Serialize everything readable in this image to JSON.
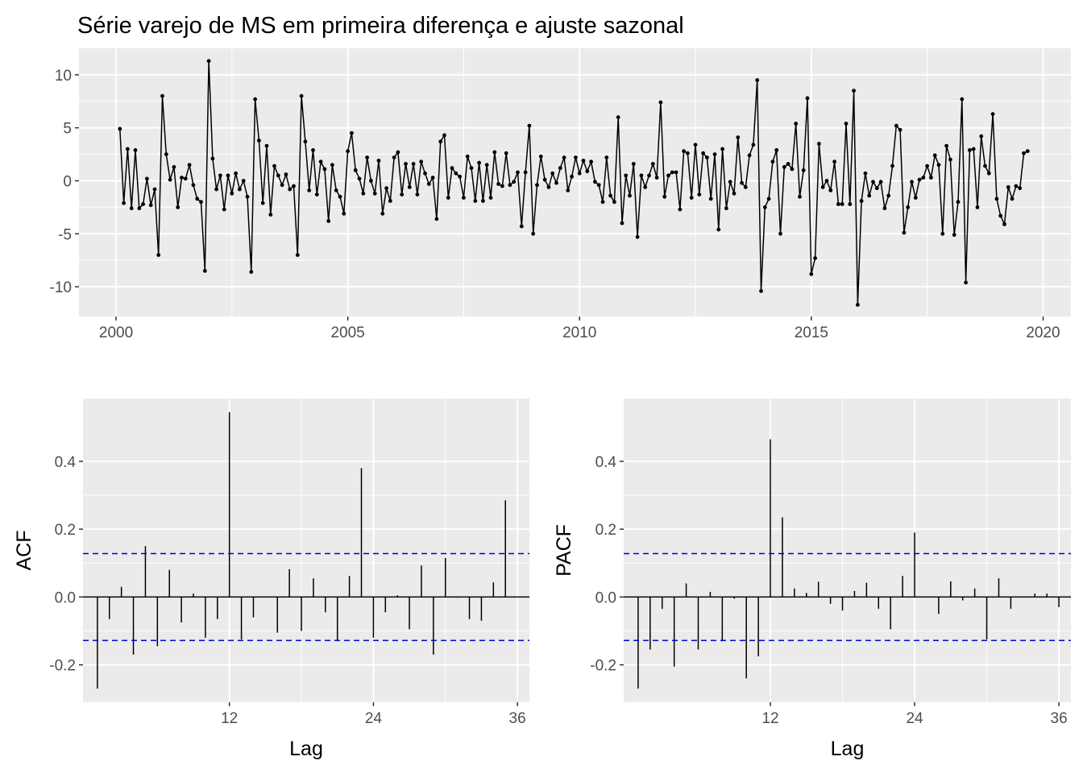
{
  "title": "Série varejo de MS em primeira diferença e ajuste sazonal",
  "colors": {
    "panel_bg": "#ebebeb",
    "grid": "#ffffff",
    "line": "#000000",
    "ci": "#0000cc",
    "tick_text": "#4d4d4d"
  },
  "chart_data": [
    {
      "id": "series",
      "type": "line",
      "title": "Série varejo de MS em primeira diferença e ajuste sazonal",
      "xlabel": "",
      "ylabel": "",
      "x_start": 2000.0833,
      "x_step": 0.08333,
      "xlim": [
        1999.2,
        2020.6
      ],
      "ylim": [
        -12.8,
        12.5
      ],
      "xticks": [
        2000,
        2005,
        2010,
        2015,
        2020
      ],
      "xtick_labels": [
        "2000",
        "2005",
        "2010",
        "2015",
        "2020"
      ],
      "yticks": [
        -10,
        -5,
        0,
        5,
        10
      ],
      "ytick_labels": [
        "-10",
        "-5",
        "0",
        "5",
        "10"
      ],
      "grid": true,
      "points_shown": true,
      "values": [
        4.9,
        -2.1,
        3.0,
        -2.6,
        2.9,
        -2.6,
        -2.2,
        0.2,
        -2.3,
        -0.8,
        -7.0,
        8.0,
        2.5,
        0.1,
        1.3,
        -2.5,
        0.3,
        0.2,
        1.5,
        -0.4,
        -1.7,
        -2.0,
        -8.5,
        11.3,
        2.1,
        -0.8,
        0.5,
        -2.7,
        0.5,
        -1.2,
        0.7,
        -0.8,
        0.0,
        -1.5,
        -8.6,
        7.7,
        3.8,
        -2.1,
        3.3,
        -3.2,
        1.4,
        0.5,
        -0.4,
        0.6,
        -0.8,
        -0.5,
        -7.0,
        8.0,
        3.7,
        -0.9,
        2.9,
        -1.3,
        1.8,
        1.1,
        -3.8,
        1.5,
        -0.9,
        -1.5,
        -3.1,
        2.8,
        4.5,
        1.0,
        0.2,
        -1.2,
        2.2,
        0.0,
        -1.2,
        1.9,
        -3.1,
        -0.7,
        -1.9,
        2.2,
        2.7,
        -1.3,
        1.6,
        -0.6,
        1.6,
        -1.3,
        1.8,
        0.7,
        -0.3,
        0.3,
        -3.6,
        3.7,
        4.3,
        -1.6,
        1.2,
        0.7,
        0.4,
        -1.6,
        2.3,
        1.2,
        -1.9,
        1.7,
        -1.9,
        1.5,
        -1.6,
        2.7,
        -0.3,
        -0.5,
        2.6,
        -0.4,
        -0.1,
        0.8,
        -4.3,
        0.8,
        5.2,
        -5.0,
        -0.4,
        2.3,
        0.1,
        -0.6,
        0.7,
        -0.2,
        1.2,
        2.2,
        -0.9,
        0.4,
        2.2,
        0.7,
        1.9,
        0.9,
        1.8,
        -0.1,
        -0.4,
        -2.0,
        2.2,
        -1.4,
        -2.0,
        6.0,
        -4.0,
        0.5,
        -1.4,
        1.6,
        -5.3,
        0.5,
        -0.6,
        0.5,
        1.6,
        0.3,
        7.4,
        -1.5,
        0.5,
        0.8,
        0.8,
        -2.7,
        2.8,
        2.6,
        -1.6,
        3.4,
        -1.3,
        2.6,
        2.2,
        -1.7,
        2.5,
        -4.6,
        3.0,
        -2.6,
        -0.1,
        -1.2,
        4.1,
        -0.2,
        -0.6,
        2.4,
        3.4,
        9.5,
        -10.4,
        -2.5,
        -1.7,
        1.8,
        2.9,
        -5.0,
        1.3,
        1.6,
        1.1,
        5.4,
        -1.5,
        1.0,
        7.8,
        -8.8,
        -7.3,
        3.5,
        -0.6,
        0.0,
        -0.9,
        1.8,
        -2.2,
        -2.2,
        5.4,
        -2.2,
        8.5,
        -11.7,
        -1.9,
        0.7,
        -1.4,
        -0.1,
        -0.7,
        -0.1,
        -2.6,
        -1.4,
        1.4,
        5.2,
        4.8,
        -4.9,
        -2.5,
        -0.1,
        -1.6,
        0.1,
        0.3,
        1.4,
        0.3,
        2.4,
        1.5,
        -5.0,
        3.3,
        2.0,
        -5.1,
        -2.0,
        7.7,
        -9.6,
        2.9,
        3.0,
        -2.5,
        4.2,
        1.4,
        0.7,
        6.3,
        -1.7,
        -3.3,
        -4.1,
        -0.6,
        -1.7,
        -0.5,
        -0.7,
        2.6,
        2.8
      ]
    },
    {
      "id": "acf",
      "type": "bar",
      "title": "",
      "xlabel": "Lag",
      "ylabel": "ACF",
      "lags": [
        1,
        2,
        3,
        4,
        5,
        6,
        7,
        8,
        9,
        10,
        11,
        12,
        13,
        14,
        15,
        16,
        17,
        18,
        19,
        20,
        21,
        22,
        23,
        24,
        25,
        26,
        27,
        28,
        29,
        30,
        31,
        32,
        33,
        34,
        35,
        36
      ],
      "values": [
        -0.27,
        -0.065,
        0.03,
        -0.17,
        0.15,
        -0.145,
        0.08,
        -0.075,
        0.01,
        -0.12,
        -0.065,
        0.545,
        -0.125,
        -0.06,
        0.0,
        -0.105,
        0.082,
        -0.1,
        0.055,
        -0.045,
        -0.13,
        0.062,
        0.38,
        -0.12,
        -0.045,
        0.005,
        -0.095,
        0.093,
        -0.17,
        0.115,
        -0.002,
        -0.065,
        -0.07,
        0.043,
        0.285,
        0.0
      ],
      "ci": 0.128,
      "xlim": [
        -0.2,
        37.0
      ],
      "ylim": [
        -0.31,
        0.585
      ],
      "xticks": [
        12,
        24,
        36
      ],
      "xtick_labels": [
        "12",
        "24",
        "36"
      ],
      "yticks": [
        -0.2,
        0.0,
        0.2,
        0.4
      ],
      "ytick_labels": [
        "-0.2",
        "0.0",
        "0.2",
        "0.4"
      ],
      "grid": true
    },
    {
      "id": "pacf",
      "type": "bar",
      "title": "",
      "xlabel": "Lag",
      "ylabel": "PACF",
      "lags": [
        1,
        2,
        3,
        4,
        5,
        6,
        7,
        8,
        9,
        10,
        11,
        12,
        13,
        14,
        15,
        16,
        17,
        18,
        19,
        20,
        21,
        22,
        23,
        24,
        25,
        26,
        27,
        28,
        29,
        30,
        31,
        32,
        33,
        34,
        35,
        36
      ],
      "values": [
        -0.27,
        -0.155,
        -0.035,
        -0.205,
        0.04,
        -0.155,
        0.015,
        -0.13,
        -0.005,
        -0.24,
        -0.175,
        0.465,
        0.235,
        0.025,
        0.012,
        0.045,
        -0.02,
        -0.04,
        0.018,
        0.042,
        -0.035,
        -0.095,
        0.062,
        0.19,
        0.0,
        -0.05,
        0.046,
        -0.01,
        0.025,
        -0.125,
        0.055,
        -0.035,
        0.0,
        0.01,
        0.01,
        -0.03
      ],
      "ci": 0.128,
      "xlim": [
        -0.2,
        37.0
      ],
      "ylim": [
        -0.31,
        0.585
      ],
      "xticks": [
        12,
        24,
        36
      ],
      "xtick_labels": [
        "12",
        "24",
        "36"
      ],
      "yticks": [
        -0.2,
        0.0,
        0.2,
        0.4
      ],
      "ytick_labels": [
        "-0.2",
        "0.0",
        "0.2",
        "0.4"
      ],
      "grid": true
    }
  ]
}
